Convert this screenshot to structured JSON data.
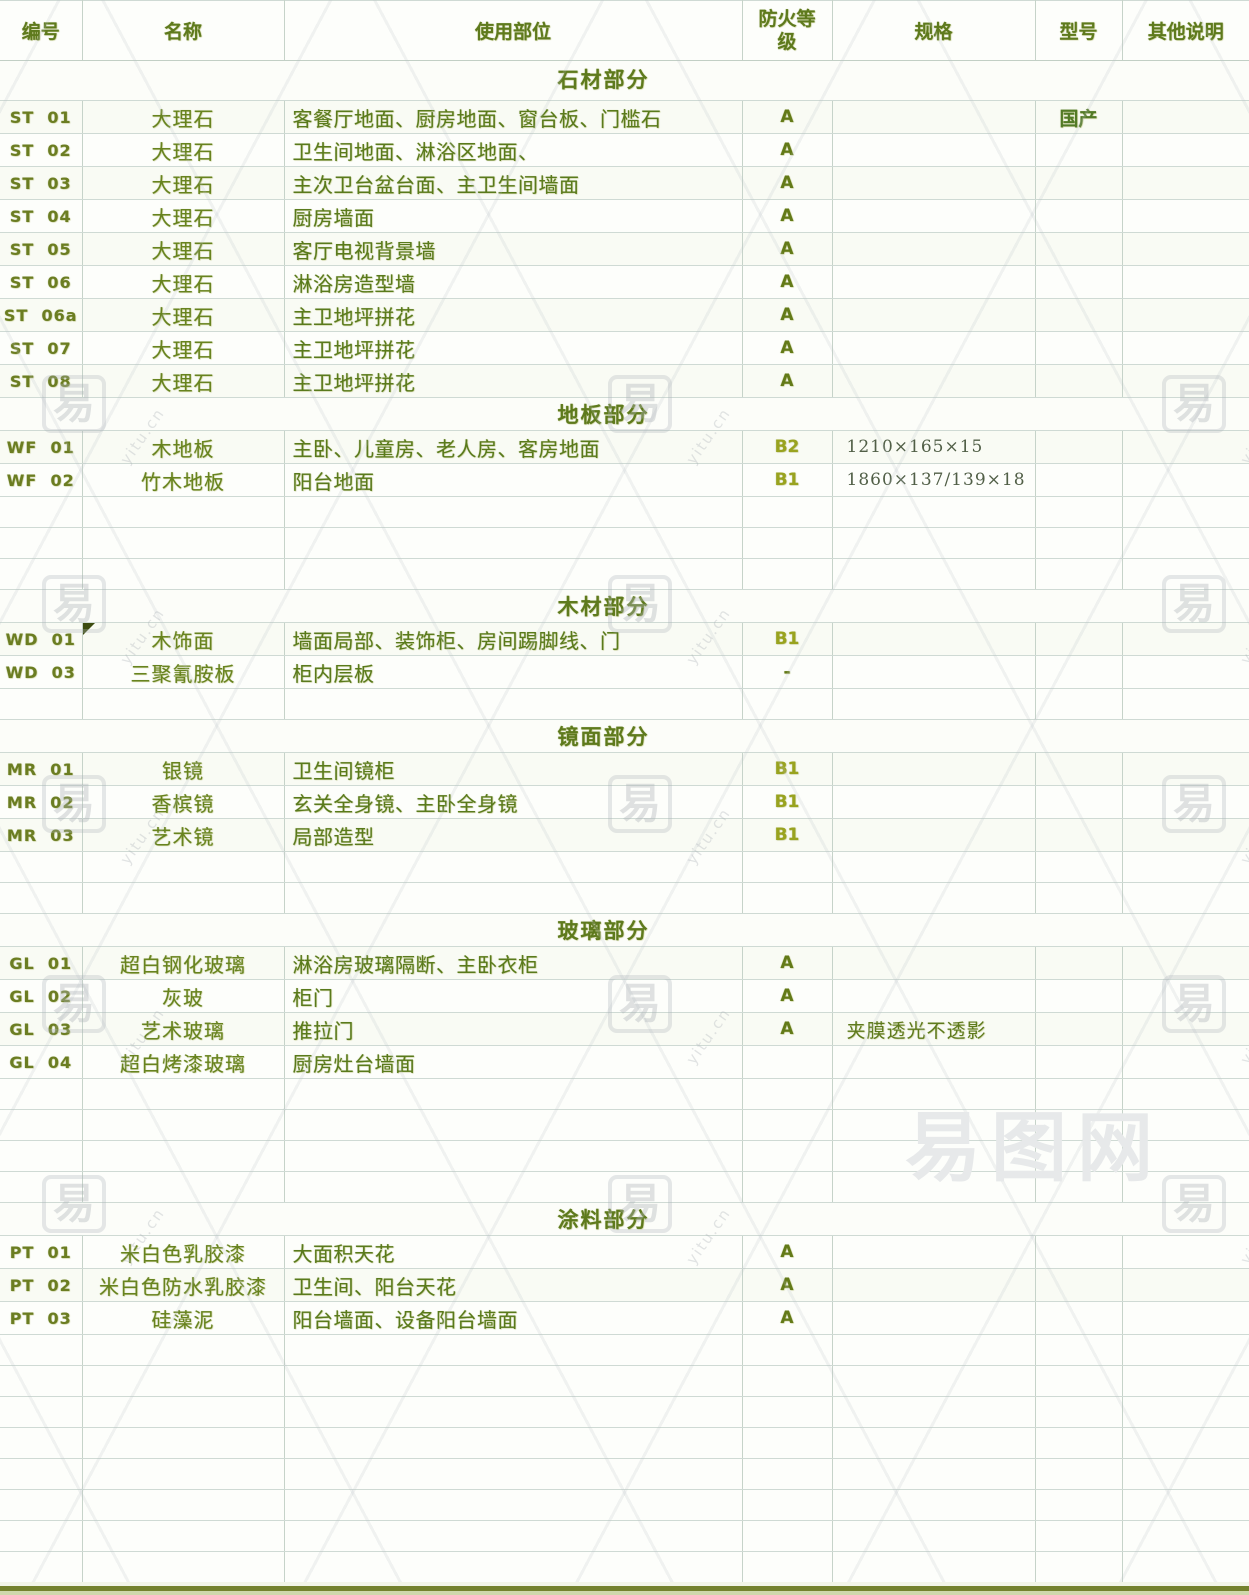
{
  "table": {
    "columns": [
      {
        "key": "code",
        "label": "编号"
      },
      {
        "key": "name",
        "label": "名称"
      },
      {
        "key": "usage",
        "label": "使用部位"
      },
      {
        "key": "fire",
        "label": "防火等级"
      },
      {
        "key": "spec",
        "label": "规格"
      },
      {
        "key": "model",
        "label": "型号"
      },
      {
        "key": "note",
        "label": "其他说明"
      }
    ],
    "rows": [
      {
        "type": "section",
        "label": "石材部分"
      },
      {
        "type": "item",
        "code": "ST  01",
        "name": "大理石",
        "usage": "客餐厅地面、厨房地面、窗台板、门槛石",
        "fire": "A",
        "spec": "",
        "model": "国产",
        "note": ""
      },
      {
        "type": "item",
        "code": "ST  02",
        "name": "大理石",
        "usage": "卫生间地面、淋浴区地面、",
        "fire": "A",
        "spec": "",
        "model": "",
        "note": ""
      },
      {
        "type": "item",
        "code": "ST  03",
        "name": "大理石",
        "usage": "主次卫台盆台面、主卫生间墙面",
        "fire": "A",
        "spec": "",
        "model": "",
        "note": ""
      },
      {
        "type": "item",
        "code": "ST  04",
        "name": "大理石",
        "usage": "厨房墙面",
        "fire": "A",
        "spec": "",
        "model": "",
        "note": ""
      },
      {
        "type": "item",
        "code": "ST  05",
        "name": "大理石",
        "usage": "客厅电视背景墙",
        "fire": "A",
        "spec": "",
        "model": "",
        "note": ""
      },
      {
        "type": "item",
        "code": "ST  06",
        "name": "大理石",
        "usage": "淋浴房造型墙",
        "fire": "A",
        "spec": "",
        "model": "",
        "note": ""
      },
      {
        "type": "item",
        "code": "ST  06a",
        "name": "大理石",
        "usage": "主卫地坪拼花",
        "fire": "A",
        "spec": "",
        "model": "",
        "note": ""
      },
      {
        "type": "item",
        "code": "ST  07",
        "name": "大理石",
        "usage": "主卫地坪拼花",
        "fire": "A",
        "spec": "",
        "model": "",
        "note": ""
      },
      {
        "type": "item",
        "code": "ST  08",
        "name": "大理石",
        "usage": "主卫地坪拼花",
        "fire": "A",
        "spec": "",
        "model": "",
        "note": ""
      },
      {
        "type": "section",
        "label": "地板部分"
      },
      {
        "type": "item",
        "code": "WF  01",
        "name": "木地板",
        "usage": "主卧、儿童房、老人房、客房地面",
        "fire": "B2",
        "spec": "1210×165×15",
        "model": "",
        "note": ""
      },
      {
        "type": "item",
        "code": "WF  02",
        "name": "竹木地板",
        "usage": "阳台地面",
        "fire": "B1",
        "spec": "1860×137/139×18",
        "model": "",
        "note": ""
      },
      {
        "type": "blank"
      },
      {
        "type": "blank"
      },
      {
        "type": "blank"
      },
      {
        "type": "section",
        "label": "木材部分"
      },
      {
        "type": "item",
        "code": "WD  01",
        "name": "木饰面",
        "usage": "墙面局部、装饰柜、房间踢脚线、门",
        "fire": "B1",
        "spec": "",
        "model": "",
        "note": "",
        "comment_marker": true
      },
      {
        "type": "item",
        "code": "WD  03",
        "name": "三聚氰胺板",
        "usage": "柜内层板",
        "fire": "-",
        "spec": "",
        "model": "",
        "note": ""
      },
      {
        "type": "blank"
      },
      {
        "type": "section",
        "label": "镜面部分"
      },
      {
        "type": "item",
        "code": "MR  01",
        "name": "银镜",
        "usage": "卫生间镜柜",
        "fire": "B1",
        "spec": "",
        "model": "",
        "note": ""
      },
      {
        "type": "item",
        "code": "MR  02",
        "name": "香槟镜",
        "usage": "玄关全身镜、主卧全身镜",
        "fire": "B1",
        "spec": "",
        "model": "",
        "note": ""
      },
      {
        "type": "item",
        "code": "MR  03",
        "name": "艺术镜",
        "usage": "局部造型",
        "fire": "B1",
        "spec": "",
        "model": "",
        "note": ""
      },
      {
        "type": "blank"
      },
      {
        "type": "blank"
      },
      {
        "type": "section",
        "label": "玻璃部分"
      },
      {
        "type": "item",
        "code": "GL  01",
        "name": "超白钢化玻璃",
        "usage": "淋浴房玻璃隔断、主卧衣柜",
        "fire": "A",
        "spec": "",
        "model": "",
        "note": ""
      },
      {
        "type": "item",
        "code": "GL  02",
        "name": "灰玻",
        "usage": "柜门",
        "fire": "A",
        "spec": "",
        "model": "",
        "note": ""
      },
      {
        "type": "item",
        "code": "GL  03",
        "name": "艺术玻璃",
        "usage": "推拉门",
        "fire": "A",
        "spec": "夹膜透光不透影",
        "spec_cn": true,
        "model": "",
        "note": ""
      },
      {
        "type": "item",
        "code": "GL  04",
        "name": "超白烤漆玻璃",
        "usage": "厨房灶台墙面",
        "fire": "",
        "spec": "",
        "model": "",
        "note": ""
      },
      {
        "type": "blank"
      },
      {
        "type": "blank"
      },
      {
        "type": "blank"
      },
      {
        "type": "blank"
      },
      {
        "type": "section",
        "label": "涂料部分"
      },
      {
        "type": "item",
        "code": "PT  01",
        "name": "米白色乳胶漆",
        "usage": "大面积天花",
        "fire": "A",
        "spec": "",
        "model": "",
        "note": ""
      },
      {
        "type": "item",
        "code": "PT  02",
        "name": "米白色防水乳胶漆",
        "usage": "卫生间、阳台天花",
        "fire": "A",
        "spec": "",
        "model": "",
        "note": ""
      },
      {
        "type": "item",
        "code": "PT  03",
        "name": "硅藻泥",
        "usage": "阳台墙面、设备阳台墙面",
        "fire": "A",
        "spec": "",
        "model": "",
        "note": ""
      },
      {
        "type": "blank"
      },
      {
        "type": "blank"
      },
      {
        "type": "blank"
      },
      {
        "type": "blank"
      },
      {
        "type": "blank"
      },
      {
        "type": "blank"
      },
      {
        "type": "blank"
      },
      {
        "type": "blank"
      }
    ]
  },
  "watermark": {
    "badge_char": "易",
    "site_name": "易图网",
    "small_text": "yitu.cn"
  },
  "colors": {
    "ink_green": "#5e7a1d",
    "section_green": "#3f5c12",
    "fire_b_green": "#99a31f",
    "bottom_bar_olive": "#74822e",
    "grid_line": "#c6d3c9",
    "watermark_gray": "#e7e9ea"
  }
}
